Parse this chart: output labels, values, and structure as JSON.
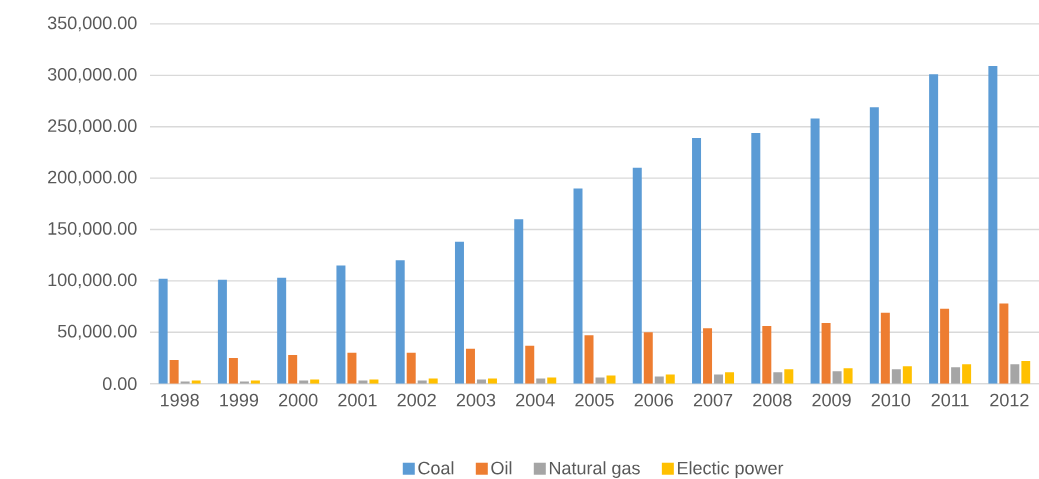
{
  "chart_data": {
    "type": "bar",
    "categories": [
      "1998",
      "1999",
      "2000",
      "2001",
      "2002",
      "2003",
      "2004",
      "2005",
      "2006",
      "2007",
      "2008",
      "2009",
      "2010",
      "2011",
      "2012"
    ],
    "series": [
      {
        "name": "Coal",
        "color": "#5b9bd5",
        "values": [
          102000,
          101000,
          103000,
          115000,
          120000,
          138000,
          160000,
          190000,
          210000,
          239000,
          244000,
          258000,
          269000,
          301000,
          309000
        ]
      },
      {
        "name": "Oil",
        "color": "#ed7d31",
        "values": [
          23000,
          25000,
          28000,
          30000,
          30000,
          34000,
          37000,
          47000,
          50000,
          54000,
          56000,
          59000,
          69000,
          73000,
          78000
        ]
      },
      {
        "name": "Natural gas",
        "color": "#a5a5a5",
        "values": [
          2000,
          2000,
          3000,
          3000,
          3000,
          4000,
          5000,
          6000,
          7000,
          9000,
          11000,
          12000,
          14000,
          16000,
          19000
        ]
      },
      {
        "name": "Electic power",
        "color": "#ffc000",
        "values": [
          3000,
          3000,
          4000,
          4000,
          5000,
          5000,
          6000,
          8000,
          9000,
          11000,
          14000,
          15000,
          17000,
          19000,
          22000
        ]
      }
    ],
    "ylim": [
      0,
      350000
    ],
    "yticks": [
      {
        "value": 0,
        "label": "0.00"
      },
      {
        "value": 50000,
        "label": "50,000.00"
      },
      {
        "value": 100000,
        "label": "100,000.00"
      },
      {
        "value": 150000,
        "label": "150,000.00"
      },
      {
        "value": 200000,
        "label": "200,000.00"
      },
      {
        "value": 250000,
        "label": "250,000.00"
      },
      {
        "value": 300000,
        "label": "300,000.00"
      },
      {
        "value": 350000,
        "label": "350,000.00"
      }
    ],
    "grid": "y",
    "legend": "bottom"
  }
}
